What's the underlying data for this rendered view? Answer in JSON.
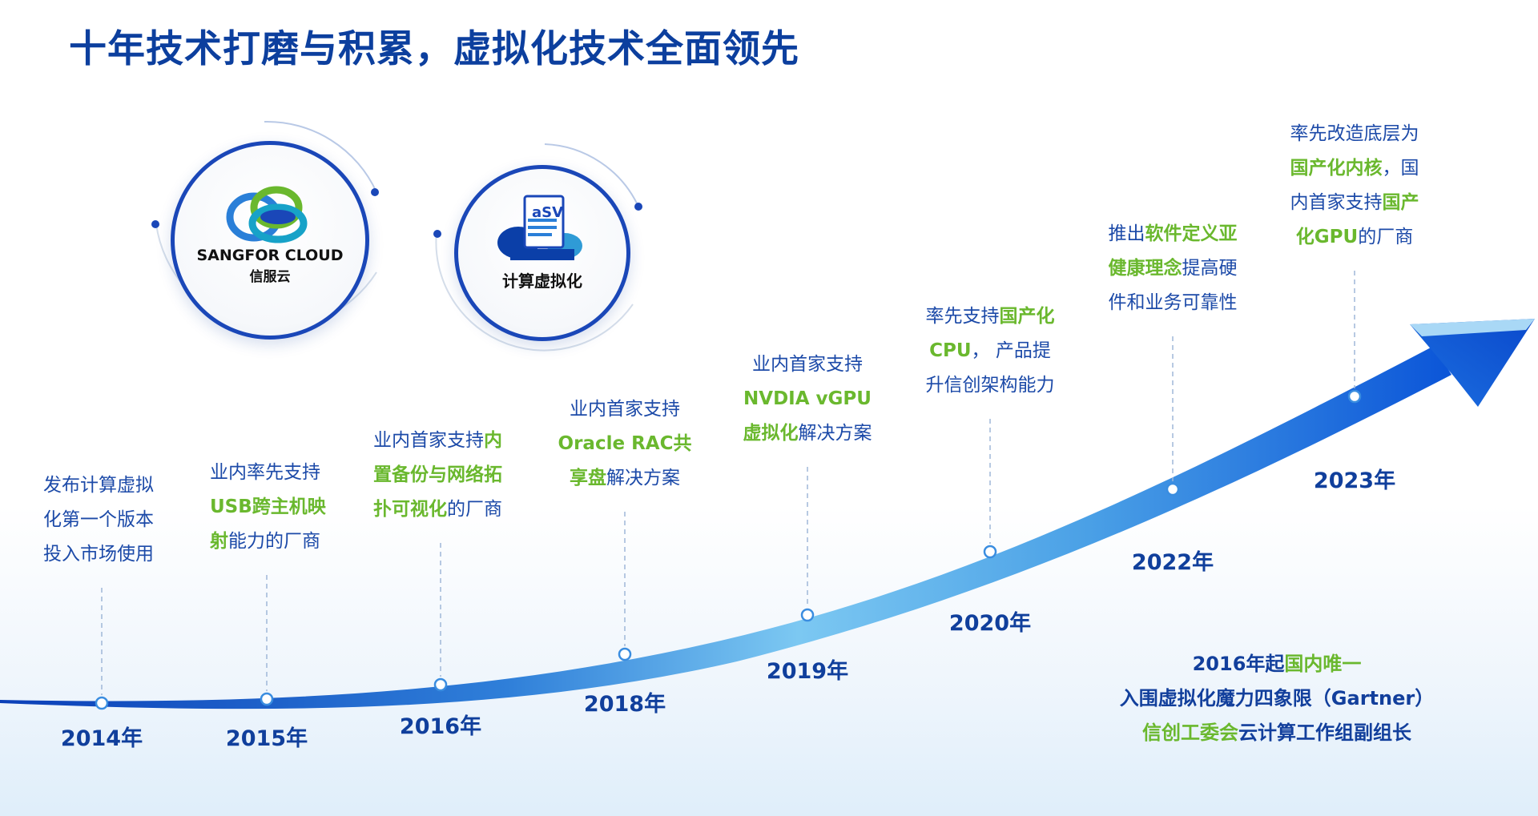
{
  "title": "十年技术打磨与积累，虚拟化技术全面领先",
  "colors": {
    "primary_text": "#1c4aa8",
    "highlight": "#6ab82e",
    "arrow_dark": "#0b4fd0",
    "arrow_light": "#7cc4f0"
  },
  "logos": [
    {
      "name": "SANGFOR CLOUD",
      "subtitle": "信服云",
      "icon": "sangfor-cloud-logo"
    },
    {
      "badge": "aSV",
      "subtitle": "计算虚拟化",
      "icon": "cloud-document-icon"
    }
  ],
  "milestones": [
    {
      "year": "2014年",
      "lines": [
        [
          {
            "text": "发布计算虚拟",
            "hl": false
          }
        ],
        [
          {
            "text": "化第一个版本",
            "hl": false
          }
        ],
        [
          {
            "text": "投入市场使用",
            "hl": false
          }
        ]
      ]
    },
    {
      "year": "2015年",
      "lines": [
        [
          {
            "text": "业内率先支持",
            "hl": false
          }
        ],
        [
          {
            "text": "USB跨主机映",
            "hl": true
          }
        ],
        [
          {
            "text": "射",
            "hl": true
          },
          {
            "text": "能力的厂商",
            "hl": false
          }
        ]
      ]
    },
    {
      "year": "2016年",
      "lines": [
        [
          {
            "text": "业内首家支持",
            "hl": false
          },
          {
            "text": "内",
            "hl": true
          }
        ],
        [
          {
            "text": "置备份与网络拓",
            "hl": true
          }
        ],
        [
          {
            "text": "扑可视化",
            "hl": true
          },
          {
            "text": "的厂商",
            "hl": false
          }
        ]
      ]
    },
    {
      "year": "2018年",
      "lines": [
        [
          {
            "text": "业内首家支持",
            "hl": false
          }
        ],
        [
          {
            "text": "Oracle RAC共",
            "hl": true
          }
        ],
        [
          {
            "text": "享盘",
            "hl": true
          },
          {
            "text": "解决方案",
            "hl": false
          }
        ]
      ]
    },
    {
      "year": "2019年",
      "lines": [
        [
          {
            "text": "业内首家支持",
            "hl": false
          }
        ],
        [
          {
            "text": "NVDIA vGPU",
            "hl": true
          }
        ],
        [
          {
            "text": "虚拟化",
            "hl": true
          },
          {
            "text": "解决方案",
            "hl": false
          }
        ]
      ]
    },
    {
      "year": "2020年",
      "lines": [
        [
          {
            "text": "率先支持",
            "hl": false
          },
          {
            "text": "国产化",
            "hl": true
          }
        ],
        [
          {
            "text": "CPU",
            "hl": true
          },
          {
            "text": "， 产品提",
            "hl": false
          }
        ],
        [
          {
            "text": "升信创架构能力",
            "hl": false
          }
        ]
      ]
    },
    {
      "year": "2022年",
      "lines": [
        [
          {
            "text": "推出",
            "hl": false
          },
          {
            "text": "软件定义亚",
            "hl": true
          }
        ],
        [
          {
            "text": "健康理念",
            "hl": true
          },
          {
            "text": "提高硬",
            "hl": false
          }
        ],
        [
          {
            "text": "件和业务可靠性",
            "hl": false
          }
        ]
      ]
    },
    {
      "year": "2023年",
      "lines": [
        [
          {
            "text": "率先改造底层为",
            "hl": false
          }
        ],
        [
          {
            "text": "国产化内核",
            "hl": true
          },
          {
            "text": "，国",
            "hl": false
          }
        ],
        [
          {
            "text": "内首家支持",
            "hl": false
          },
          {
            "text": "国产",
            "hl": true
          }
        ],
        [
          {
            "text": "化GPU",
            "hl": true
          },
          {
            "text": "的厂商",
            "hl": false
          }
        ]
      ]
    }
  ],
  "honors": [
    [
      {
        "text": "2016年起",
        "hl": false
      },
      {
        "text": "国内唯一",
        "hl": true
      }
    ],
    [
      {
        "text": "入围虚拟化魔力四象限（Gartner）",
        "hl": false
      }
    ],
    [
      {
        "text": "信创工委会",
        "hl": true
      },
      {
        "text": "云计算工作组副组长",
        "hl": false
      }
    ]
  ]
}
